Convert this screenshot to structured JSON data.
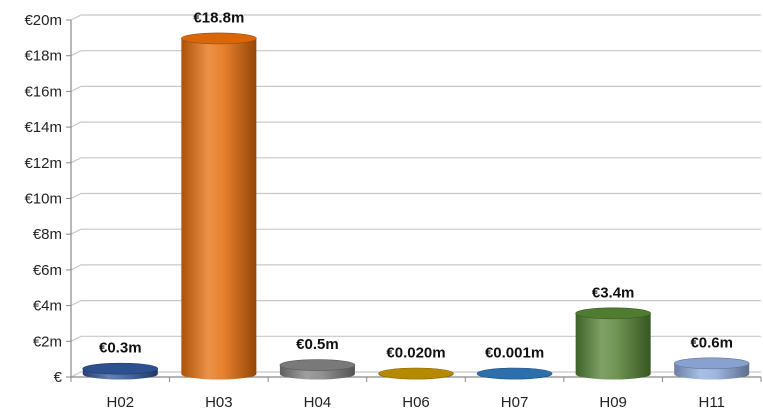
{
  "chart_data": {
    "type": "bar",
    "categories": [
      "H02",
      "H03",
      "H04",
      "H06",
      "H07",
      "H09",
      "H11"
    ],
    "values": [
      0.3,
      18.8,
      0.5,
      0.02,
      0.001,
      3.4,
      0.6
    ],
    "data_labels": [
      "€0.3m",
      "€18.8m",
      "€0.5m",
      "€0.020m",
      "€0.001m",
      "€3.4m",
      "€0.6m"
    ],
    "colors": [
      "#2F5597",
      "#E46C0A",
      "#7F7F7F",
      "#BF9000",
      "#2E75B6",
      "#548235",
      "#8EA9DB"
    ],
    "ylim": [
      0,
      20
    ],
    "yticks": [
      0,
      2,
      4,
      6,
      8,
      10,
      12,
      14,
      16,
      18,
      20
    ],
    "ytick_labels": [
      "€",
      "€2m",
      "€4m",
      "€6m",
      "€8m",
      "€10m",
      "€12m",
      "€14m",
      "€16m",
      "€18m",
      "€20m"
    ],
    "grid": true,
    "bar_style": "3d-cylinder"
  }
}
